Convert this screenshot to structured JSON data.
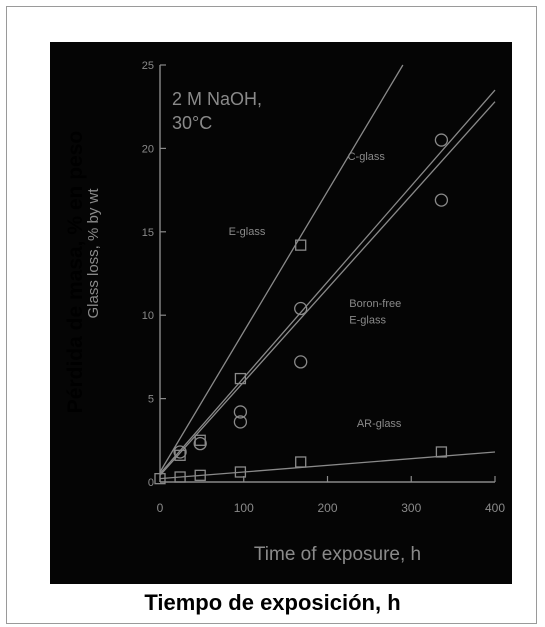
{
  "overlay": {
    "ylabel": "Pérdida de masa, % en peso",
    "xlabel": "Tiempo de exposición, h"
  },
  "colors": {
    "photo_bg": "#050505",
    "ink": "#8a8a8a",
    "overlay_text": "#000000"
  },
  "chart_data": {
    "type": "scatter",
    "title": "",
    "annotation": [
      "2 M NaOH,",
      "30°C"
    ],
    "xlabel": "Time of exposure, h",
    "ylabel": "Glass loss, % by wt",
    "xlim": [
      0,
      400
    ],
    "ylim": [
      0,
      25
    ],
    "xticks": [
      0,
      100,
      200,
      300,
      400
    ],
    "yticks": [
      0,
      5,
      10,
      15,
      20,
      25
    ],
    "grid": false,
    "series": [
      {
        "name": "E-glass",
        "marker": "square",
        "points": [
          [
            24,
            1.6
          ],
          [
            48,
            2.5
          ],
          [
            96,
            6.2
          ],
          [
            168,
            14.2
          ]
        ],
        "fit": [
          [
            0,
            0.6
          ],
          [
            290,
            25
          ]
        ]
      },
      {
        "name": "C-glass",
        "marker": "circle",
        "points": [
          [
            96,
            4.2
          ],
          [
            168,
            10.4
          ],
          [
            336,
            20.5
          ]
        ],
        "fit": [
          [
            0,
            0.5
          ],
          [
            400,
            23.5
          ]
        ]
      },
      {
        "name": "Boron-free E-glass",
        "marker": "circle",
        "points": [
          [
            24,
            1.8
          ],
          [
            48,
            2.3
          ],
          [
            96,
            3.6
          ],
          [
            168,
            7.2
          ],
          [
            336,
            16.9
          ]
        ],
        "fit": [
          [
            0,
            0.4
          ],
          [
            400,
            22.8
          ]
        ]
      },
      {
        "name": "AR-glass",
        "marker": "square",
        "points": [
          [
            0,
            0.2
          ],
          [
            24,
            0.3
          ],
          [
            48,
            0.4
          ],
          [
            96,
            0.6
          ],
          [
            168,
            1.2
          ],
          [
            336,
            1.8
          ]
        ],
        "fit": [
          [
            0,
            0.2
          ],
          [
            400,
            1.8
          ]
        ]
      }
    ],
    "labels": [
      {
        "text": "E-glass",
        "x": 82,
        "y": 14.8
      },
      {
        "text": "C-glass",
        "x": 224,
        "y": 19.3
      },
      {
        "text": "Boron-free",
        "x": 226,
        "y": 10.5
      },
      {
        "text": "E-glass",
        "x": 226,
        "y": 9.5
      },
      {
        "text": "AR-glass",
        "x": 235,
        "y": 3.3
      }
    ]
  }
}
